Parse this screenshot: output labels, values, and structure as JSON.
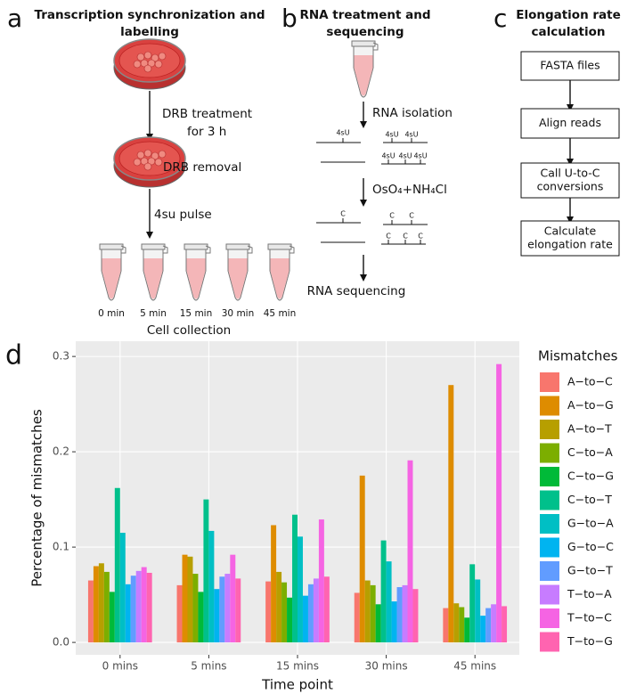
{
  "panel_a": {
    "letter": "a",
    "title": [
      "Transcription synchronization and",
      "labelling"
    ],
    "step1": [
      "DRB treatment",
      "for 3 h"
    ],
    "step2": "DRB removal",
    "step3": "4su pulse",
    "tubes": [
      "0 min",
      "5 min",
      "15 min",
      "30 min",
      "45 min"
    ],
    "caption": "Cell collection"
  },
  "panel_b": {
    "letter": "b",
    "title": [
      "RNA treatment and",
      "sequencing"
    ],
    "step1": "RNA isolation",
    "labels_4su": [
      "4sU",
      "4sU",
      "4sU",
      "4sU",
      "4sU",
      "4sU"
    ],
    "step2": "OsO₄+NH₄Cl",
    "labels_c": [
      "C",
      "C",
      "C",
      "C",
      "C",
      "C"
    ],
    "step3": "RNA sequencing"
  },
  "panel_c": {
    "letter": "c",
    "title": [
      "Elongation rate",
      "calculation"
    ],
    "boxes": [
      [
        "FASTA files"
      ],
      [
        "Align reads"
      ],
      [
        "Call U-to-C",
        "conversions"
      ],
      [
        "Calculate",
        "elongation rate"
      ]
    ]
  },
  "chart_data": {
    "type": "bar",
    "panel_letter": "d",
    "y_label": "Percentage of mismatches",
    "x_label": "Time point",
    "legend_title": "Mismatches",
    "legend": "right",
    "grid": true,
    "categories": [
      "0 mins",
      "5 mins",
      "15 mins",
      "30 mins",
      "45 mins"
    ],
    "ylim": [
      -0.013,
      0.316
    ],
    "yticks": [
      {
        "value": 0,
        "label": "0.0"
      },
      0.1,
      0.2,
      0.3
    ],
    "series": [
      {
        "name": "A−to−C",
        "color": "#F8766D",
        "values": [
          0.065,
          0.06,
          0.064,
          0.052,
          0.036
        ]
      },
      {
        "name": "A−to−G",
        "color": "#DE8C00",
        "values": [
          0.08,
          0.092,
          0.123,
          0.175,
          0.27
        ]
      },
      {
        "name": "A−to−T",
        "color": "#B79F00",
        "values": [
          0.083,
          0.09,
          0.074,
          0.065,
          0.041
        ]
      },
      {
        "name": "C−to−A",
        "color": "#7CAE00",
        "values": [
          0.074,
          0.072,
          0.063,
          0.06,
          0.037
        ]
      },
      {
        "name": "C−to−G",
        "color": "#00BA38",
        "values": [
          0.053,
          0.053,
          0.047,
          0.04,
          0.026
        ]
      },
      {
        "name": "C−to−T",
        "color": "#00C08B",
        "values": [
          0.162,
          0.15,
          0.134,
          0.107,
          0.082
        ]
      },
      {
        "name": "G−to−A",
        "color": "#00BFC4",
        "values": [
          0.115,
          0.117,
          0.111,
          0.085,
          0.066
        ]
      },
      {
        "name": "G−to−C",
        "color": "#00B4F0",
        "values": [
          0.061,
          0.056,
          0.049,
          0.043,
          0.028
        ]
      },
      {
        "name": "G−to−T",
        "color": "#619CFF",
        "values": [
          0.07,
          0.069,
          0.061,
          0.058,
          0.036
        ]
      },
      {
        "name": "T−to−A",
        "color": "#C77CFF",
        "values": [
          0.075,
          0.072,
          0.067,
          0.06,
          0.04
        ]
      },
      {
        "name": "T−to−C",
        "color": "#F564E3",
        "values": [
          0.079,
          0.092,
          0.129,
          0.191,
          0.292
        ]
      },
      {
        "name": "T−to−G",
        "color": "#FF64B0",
        "values": [
          0.073,
          0.067,
          0.069,
          0.056,
          0.038
        ]
      }
    ]
  }
}
